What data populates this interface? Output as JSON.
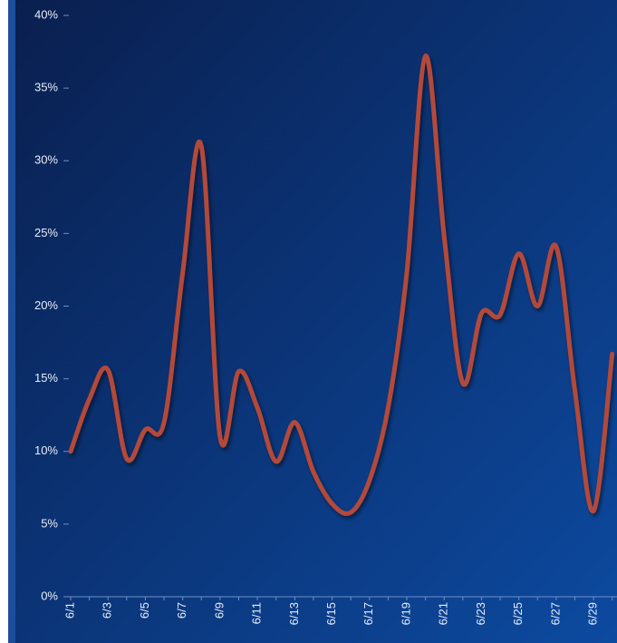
{
  "chart_data": {
    "type": "line",
    "categories": [
      "6/1",
      null,
      "6/3",
      null,
      "6/5",
      null,
      "6/7",
      null,
      "6/9",
      null,
      "6/11",
      null,
      "6/13",
      null,
      "6/15",
      null,
      "6/17",
      null,
      "6/19",
      null,
      "6/21",
      null,
      "6/23",
      null,
      "6/25",
      null,
      "6/27",
      null,
      "6/29",
      null
    ],
    "series": [
      {
        "color": "#b34a3a",
        "values": [
          10,
          13.6,
          15.6,
          9.5,
          11.5,
          12,
          22.3,
          31,
          11,
          15.5,
          13,
          9.3,
          12,
          8.6,
          6.4,
          5.8,
          8,
          13,
          22.3,
          37.2,
          24.8,
          14.7,
          19.5,
          19.4,
          23.6,
          20,
          24.1,
          14.2,
          5.9,
          16.7
        ]
      }
    ],
    "ylim": [
      0,
      40
    ],
    "yticks": [
      {
        "value": 0,
        "label": "0%"
      },
      {
        "value": 5,
        "label": "5%"
      },
      {
        "value": 10,
        "label": "10%"
      },
      {
        "value": 15,
        "label": "15%"
      },
      {
        "value": 20,
        "label": "20%"
      },
      {
        "value": 25,
        "label": "25%"
      },
      {
        "value": 30,
        "label": "30%"
      },
      {
        "value": 35,
        "label": "35%"
      },
      {
        "value": 40,
        "label": "40%"
      }
    ]
  }
}
